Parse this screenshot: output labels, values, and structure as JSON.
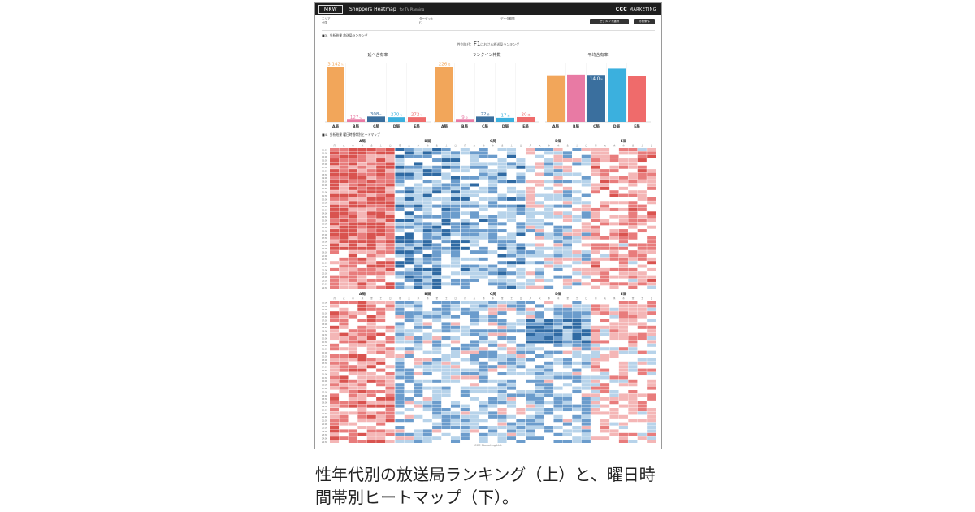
{
  "app": {
    "logo_text": "MKW",
    "title": "Shoppers Heatmap",
    "subtitle": "for TV Planning",
    "brand": "CCC",
    "brand_suffix": "MARKETING"
  },
  "filters": {
    "col1_label": "エリア",
    "col1_value": "全国",
    "col2_label": "ターゲット",
    "col2_value": "F1",
    "col3_label": "データ期間",
    "col3_value": "",
    "button_segment": "セグメント選択",
    "button_settings": "分析条件"
  },
  "section3": {
    "title": "■3．分析結果 放送局ランキング",
    "target_prefix": "性別年代：",
    "target_value": "F1",
    "target_suffix": "における放送局ランキング"
  },
  "section4": {
    "title": "■4．分析結果 曜日時間帯別ヒートマップ"
  },
  "stations": [
    "A局",
    "B局",
    "C局",
    "D局",
    "E局"
  ],
  "station_colors": [
    "#f2a65a",
    "#e87aa4",
    "#3a6f9e",
    "#3bb0de",
    "#ef6b6b"
  ],
  "chart_data": [
    {
      "type": "bar",
      "title": "延べ含有率",
      "categories": [
        "A局",
        "B局",
        "C局",
        "D局",
        "E局"
      ],
      "values": [
        3142,
        127,
        308,
        270,
        272
      ],
      "labels": [
        "3,142",
        "127",
        "308",
        "270",
        "272"
      ],
      "unit": "%"
    },
    {
      "type": "bar",
      "title": "ランクイン枠数",
      "categories": [
        "A局",
        "B局",
        "C局",
        "D局",
        "E局"
      ],
      "values": [
        226,
        9,
        22,
        17,
        20
      ],
      "labels": [
        "226",
        "9",
        "22",
        "17",
        "20"
      ],
      "unit": "枠"
    },
    {
      "type": "bar",
      "title": "平均含有率",
      "categories": [
        "A局",
        "B局",
        "C局",
        "D局",
        "E局"
      ],
      "values": [
        13.9,
        14.1,
        14.0,
        15.9,
        13.6
      ],
      "labels": [
        "13.9",
        "14.1",
        "14.0",
        "15.9",
        "13.6"
      ],
      "unit": "%"
    }
  ],
  "heatmap": {
    "day_labels": [
      "月",
      "火",
      "水",
      "木",
      "金",
      "土",
      "日"
    ],
    "time_labels": [
      "05:00",
      "05:30",
      "06:00",
      "06:30",
      "07:00",
      "07:30",
      "08:00",
      "08:30",
      "09:00",
      "09:30",
      "10:00",
      "10:30",
      "11:00",
      "11:30",
      "12:00",
      "12:30",
      "13:00",
      "13:30",
      "14:00",
      "14:30",
      "15:00",
      "15:30",
      "16:00",
      "16:30",
      "17:00",
      "17:30",
      "18:00",
      "18:30",
      "19:00",
      "19:30",
      "20:00",
      "20:30",
      "21:00",
      "21:30",
      "22:00",
      "22:30",
      "23:00",
      "23:30",
      "24:00",
      "24:30"
    ],
    "colors": {
      "strong_red": "#d9534f",
      "red": "#e87c7c",
      "light_red": "#f4b6b6",
      "white": "#ffffff",
      "light_blue": "#b7d3ea",
      "blue": "#6b9ccc",
      "strong_blue": "#2f6aa3"
    }
  },
  "footer": "CCC Marketing Ltd.",
  "caption_line1": "性年代別の放送局ランキング（上）と、曜日時",
  "caption_line2": "間帯別ヒートマップ（下）。"
}
